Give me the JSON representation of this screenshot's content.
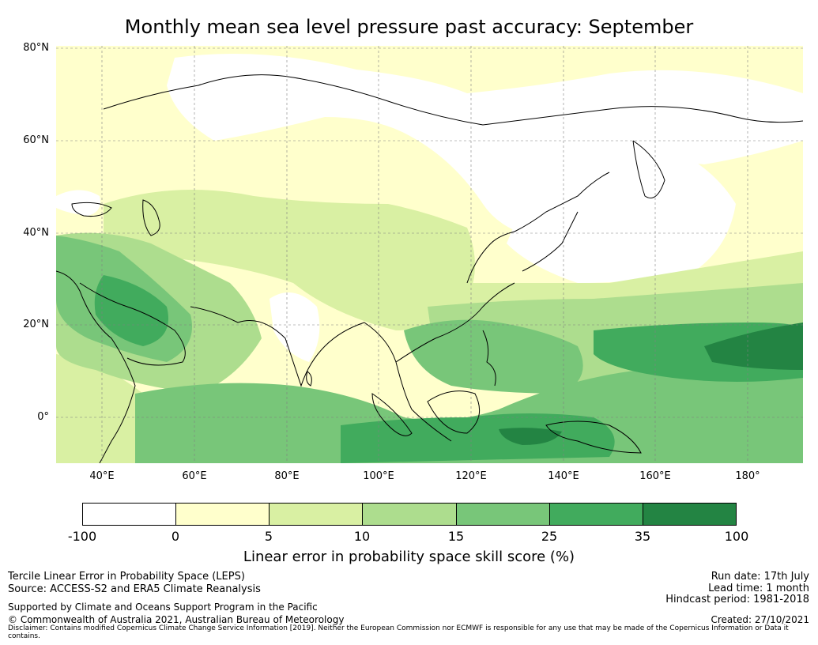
{
  "title": "Monthly mean sea level pressure past accuracy: September",
  "map": {
    "lat_labels": [
      "80°N",
      "60°N",
      "40°N",
      "20°N",
      "0°"
    ],
    "lon_labels": [
      "40°E",
      "60°E",
      "80°E",
      "100°E",
      "120°E",
      "140°E",
      "160°E",
      "180°"
    ],
    "extent": {
      "lon_min": 30,
      "lon_max": 192,
      "lat_min": -10,
      "lat_max": 80
    }
  },
  "colorbar": {
    "ticks": [
      "-100",
      "0",
      "5",
      "10",
      "15",
      "25",
      "35",
      "100"
    ],
    "colors": [
      "#ffffff",
      "#ffffcc",
      "#d9f0a3",
      "#addd8e",
      "#78c679",
      "#41ab5d",
      "#238443"
    ],
    "label": "Linear error in probability space skill score (%)"
  },
  "footer": {
    "left1": "Tercile Linear Error in Probability Space (LEPS)",
    "left2": "Source: ACCESS-S2 and ERA5 Climate Reanalysis",
    "left3": "Supported by Climate and Oceans Support Program in the Pacific",
    "left4": "© Commonwealth of Australia 2021, Australian Bureau of Meteorology",
    "right1": "Run date: 17th July",
    "right2": "Lead time: 1 month",
    "right3": "Hindcast period: 1981-2018",
    "right4": "Created: 27/10/2021",
    "disclaimer": "Disclaimer: Contains modified Copernicus Climate Change Service Information [2019]. Neither the European Commission nor ECMWF is responsible for any use that may be made of the Copernicus Information or Data it contains."
  }
}
